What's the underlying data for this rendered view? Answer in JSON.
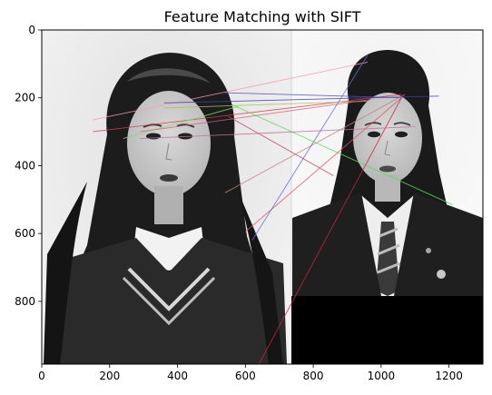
{
  "chart_data": {
    "type": "image",
    "title": "Feature Matching with SIFT",
    "xlim": [
      0,
      1300
    ],
    "ylim": [
      985,
      0
    ],
    "x_ticks": [
      0,
      200,
      400,
      600,
      800,
      1000,
      1200
    ],
    "y_ticks": [
      0,
      200,
      400,
      600,
      800
    ],
    "image_panels": [
      {
        "name": "left-portrait",
        "x_range": [
          0,
          735
        ],
        "y_range": [
          0,
          985
        ],
        "content": "grayscale portrait, long dark hair, school uniform"
      },
      {
        "name": "right-portrait",
        "x_range": [
          735,
          1300
        ],
        "y_range": [
          0,
          785
        ],
        "content": "grayscale portrait, long dark hair, blazer with tie"
      },
      {
        "name": "black-padding",
        "x_range": [
          735,
          1300
        ],
        "y_range": [
          785,
          985
        ],
        "content": "black padding region"
      }
    ],
    "matches": [
      {
        "x1": 150,
        "y1": 265,
        "x2": 960,
        "y2": 95,
        "color": "#f2a0b4"
      },
      {
        "x1": 150,
        "y1": 300,
        "x2": 1060,
        "y2": 190,
        "color": "#d83a4a"
      },
      {
        "x1": 360,
        "y1": 215,
        "x2": 1170,
        "y2": 195,
        "color": "#3b3fb0"
      },
      {
        "x1": 540,
        "y1": 185,
        "x2": 1060,
        "y2": 200,
        "color": "#5050c0"
      },
      {
        "x1": 360,
        "y1": 230,
        "x2": 960,
        "y2": 210,
        "color": "#b0c050"
      },
      {
        "x1": 240,
        "y1": 320,
        "x2": 580,
        "y2": 225,
        "color": "#80d870"
      },
      {
        "x1": 290,
        "y1": 300,
        "x2": 970,
        "y2": 205,
        "color": "#d86080"
      },
      {
        "x1": 560,
        "y1": 220,
        "x2": 1210,
        "y2": 515,
        "color": "#60d860"
      },
      {
        "x1": 540,
        "y1": 480,
        "x2": 1070,
        "y2": 190,
        "color": "#c08080"
      },
      {
        "x1": 600,
        "y1": 595,
        "x2": 1060,
        "y2": 200,
        "color": "#e05060"
      },
      {
        "x1": 620,
        "y1": 620,
        "x2": 960,
        "y2": 75,
        "color": "#6070d0"
      },
      {
        "x1": 550,
        "y1": 255,
        "x2": 860,
        "y2": 430,
        "color": "#c04060"
      },
      {
        "x1": 640,
        "y1": 985,
        "x2": 1060,
        "y2": 200,
        "color": "#d02040"
      },
      {
        "x1": 290,
        "y1": 320,
        "x2": 1100,
        "y2": 285,
        "color": "#c070a0"
      }
    ]
  }
}
